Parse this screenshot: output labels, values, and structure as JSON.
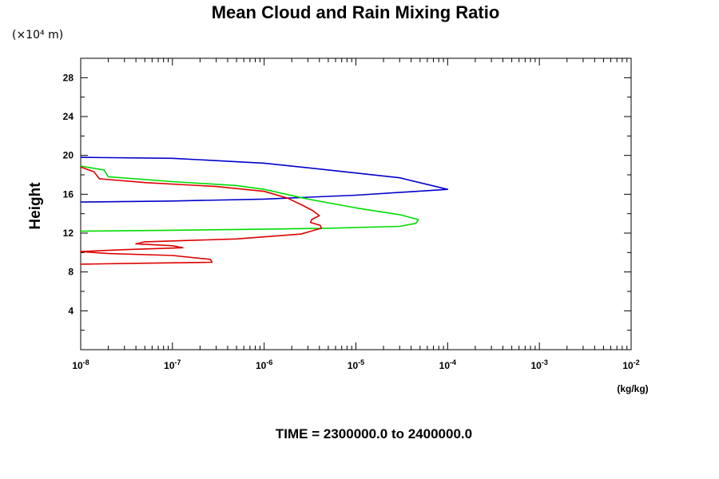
{
  "chart_data": {
    "type": "line",
    "title": "Mean Cloud and Rain Mixing Ratio",
    "subtitle": "TIME = 2300000.0 to 2400000.0",
    "ylabel": "Height",
    "yscale_note": "(×10⁴ m)",
    "xlabel_unit": "(kg/kg)",
    "x_scale": "log",
    "xlim": [
      1e-08,
      0.01
    ],
    "ylim": [
      0,
      30
    ],
    "x_ticks": [
      {
        "base": "10",
        "exp": "-8"
      },
      {
        "base": "10",
        "exp": "-7"
      },
      {
        "base": "10",
        "exp": "-6"
      },
      {
        "base": "10",
        "exp": "-5"
      },
      {
        "base": "10",
        "exp": "-4"
      },
      {
        "base": "10",
        "exp": "-3"
      },
      {
        "base": "10",
        "exp": "-2"
      }
    ],
    "y_ticks": [
      "4",
      "8",
      "12",
      "16",
      "20",
      "24",
      "28"
    ],
    "grid": false,
    "series": [
      {
        "color": "#0000cc",
        "points": [
          [
            1e-08,
            19.8
          ],
          [
            1e-07,
            19.7
          ],
          [
            1e-06,
            19.2
          ],
          [
            5e-06,
            18.5
          ],
          [
            3e-05,
            17.7
          ],
          [
            0.0001,
            16.5
          ],
          [
            1e-05,
            15.9
          ],
          [
            1e-06,
            15.5
          ],
          [
            1e-07,
            15.3
          ],
          [
            1e-08,
            15.2
          ]
        ]
      },
      {
        "color": "#00dd00",
        "points": [
          [
            1e-08,
            18.9
          ],
          [
            1.8e-08,
            18.5
          ],
          [
            2e-08,
            17.8
          ],
          [
            1e-07,
            17.3
          ],
          [
            5e-07,
            16.9
          ],
          [
            1e-06,
            16.5
          ],
          [
            3e-06,
            15.5
          ],
          [
            1e-05,
            14.6
          ],
          [
            3e-05,
            13.9
          ],
          [
            4.8e-05,
            13.4
          ],
          [
            4.5e-05,
            13.0
          ],
          [
            3e-05,
            12.7
          ],
          [
            5e-06,
            12.5
          ],
          [
            1e-06,
            12.4
          ],
          [
            1e-07,
            12.3
          ],
          [
            1e-08,
            12.2
          ]
        ]
      },
      {
        "color": "#dd0000",
        "points": [
          [
            1e-08,
            18.8
          ],
          [
            1.4e-08,
            18.3
          ],
          [
            1.6e-08,
            17.6
          ],
          [
            5e-08,
            17.2
          ],
          [
            3e-07,
            16.8
          ],
          [
            1e-06,
            16.3
          ],
          [
            1.8e-06,
            15.6
          ],
          [
            2.7e-06,
            14.8
          ],
          [
            3.4e-06,
            14.3
          ],
          [
            4e-06,
            13.8
          ],
          [
            3.3e-06,
            13.4
          ],
          [
            3.2e-06,
            13.1
          ],
          [
            4.1e-06,
            12.8
          ],
          [
            4.2e-06,
            12.5
          ],
          [
            2.5e-06,
            11.9
          ],
          [
            5e-07,
            11.4
          ],
          [
            5e-08,
            11.1
          ],
          [
            4e-08,
            10.9
          ],
          [
            1e-07,
            10.7
          ],
          [
            1.3e-07,
            10.5
          ],
          [
            3e-08,
            10.3
          ],
          [
            1e-08,
            10.1
          ],
          [
            2e-08,
            9.9
          ],
          [
            1e-07,
            9.7
          ],
          [
            2.6e-07,
            9.3
          ],
          [
            2.7e-07,
            9.0
          ],
          [
            5e-08,
            8.9
          ],
          [
            1e-08,
            8.8
          ]
        ]
      }
    ]
  }
}
